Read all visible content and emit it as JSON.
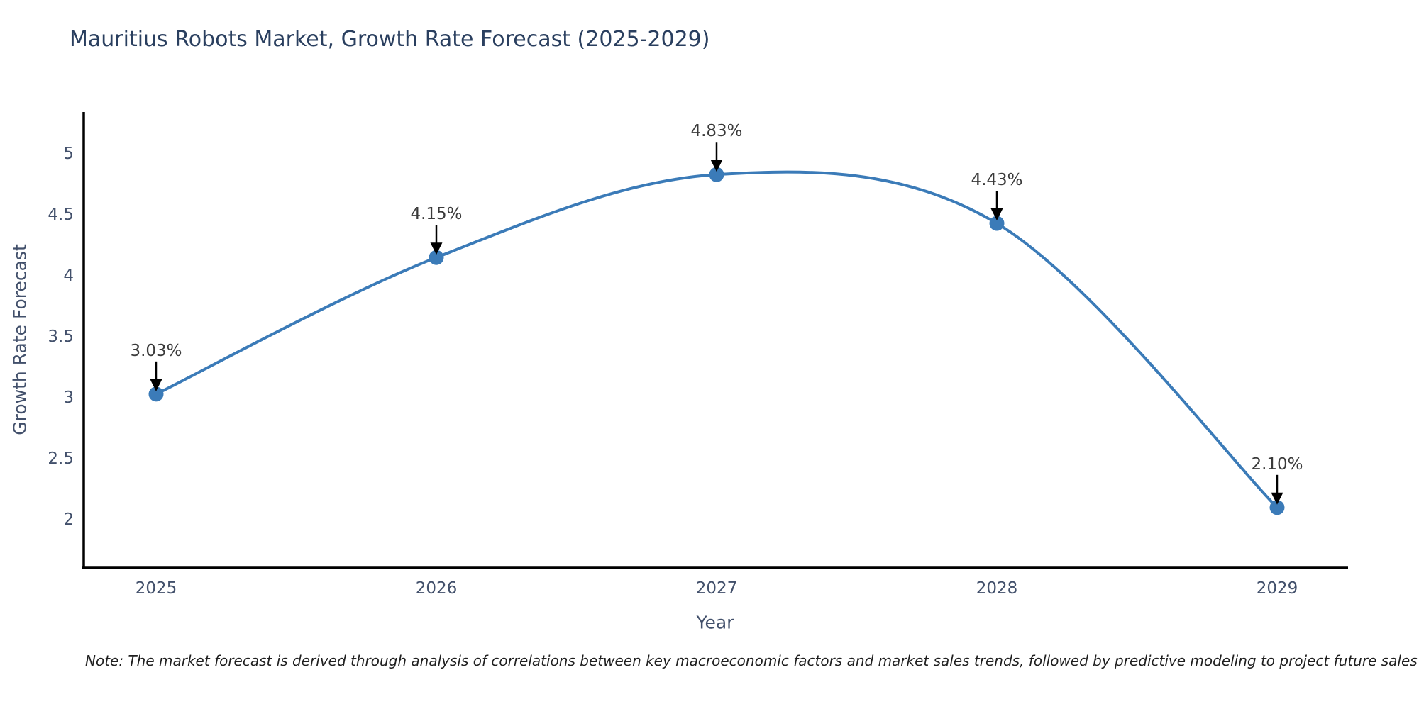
{
  "note": "Note: The market forecast is derived through analysis of correlations between key macroeconomic factors and market sales trends, followed by predictive modeling to project future sales",
  "chart_data": {
    "type": "line",
    "title": "Mauritius Robots Market, Growth Rate Forecast (2025-2029)",
    "xlabel": "Year",
    "ylabel": "Growth Rate Forecast",
    "x": [
      2025,
      2026,
      2027,
      2028,
      2029
    ],
    "values": [
      3.03,
      4.15,
      4.83,
      4.43,
      2.1
    ],
    "point_labels": [
      "3.03%",
      "4.15%",
      "4.83%",
      "4.43%",
      "2.10%"
    ],
    "x_tick_labels": [
      "2025",
      "2026",
      "2027",
      "2028",
      "2029"
    ],
    "y_ticks": [
      2,
      2.5,
      3,
      3.5,
      4,
      4.5,
      5
    ],
    "ylim": [
      1.6,
      5.37
    ],
    "line_shape": "spline",
    "grid": false,
    "legend": "none",
    "colors": {
      "line": "#3b7bb8",
      "marker": "#3b7bb8",
      "axis": "#000000",
      "tick_label": "#42506b",
      "title": "#2a3f5f",
      "annotation_text": "#3a3a3a",
      "annotation_arrow": "#000000"
    }
  }
}
